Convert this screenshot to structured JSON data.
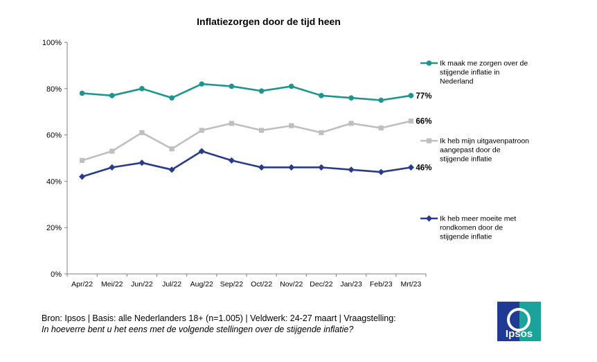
{
  "chart_data": {
    "type": "line",
    "title": "Inflatiezorgen door de tijd heen",
    "categories": [
      "Apr/22",
      "Mei/22",
      "Jun/22",
      "Jul/22",
      "Aug/22",
      "Sep/22",
      "Oct/22",
      "Nov/22",
      "Dec/22",
      "Jan/23",
      "Feb/23",
      "Mrt/23"
    ],
    "ylim": [
      0,
      100
    ],
    "yticks": [
      "0%",
      "20%",
      "40%",
      "60%",
      "80%",
      "100%"
    ],
    "ytick_values": [
      0,
      20,
      40,
      60,
      80,
      100
    ],
    "xlabel": "",
    "ylabel": "",
    "grid": false,
    "legend_position": "right",
    "series": [
      {
        "name": "Ik maak me zorgen over de stijgende inflatie in Nederland",
        "legend_lines": [
          "Ik maak me zorgen over de",
          "stijgende inflatie in",
          "Nederland"
        ],
        "values": [
          78,
          77,
          80,
          76,
          82,
          81,
          79,
          81,
          77,
          76,
          75,
          77
        ],
        "end_label": "77%",
        "color": "#1a958f",
        "marker": "circle"
      },
      {
        "name": "Ik heb mijn uitgavenpatroon aangepast door de stijgende inflatie",
        "legend_lines": [
          "Ik heb mijn uitgavenpatroon",
          "aangepast door de",
          "stijgende inflatie"
        ],
        "values": [
          49,
          53,
          61,
          54,
          62,
          65,
          62,
          64,
          61,
          65,
          63,
          66
        ],
        "end_label": "66%",
        "color": "#bfbfbf",
        "marker": "square"
      },
      {
        "name": "Ik heb meer moeite met rondkomen door de stijgende inflatie",
        "legend_lines": [
          "Ik heb meer moeite met",
          "rondkomen door de",
          "stijgende inflatie"
        ],
        "values": [
          42,
          46,
          48,
          45,
          53,
          49,
          46,
          46,
          46,
          45,
          44,
          46
        ],
        "end_label": "46%",
        "color": "#283b8c",
        "marker": "diamond"
      }
    ]
  },
  "footer": {
    "source": "Bron: Ipsos | Basis: alle Nederlanders 18+ (n=1.005) | Veldwerk: 24-27 maart | Vraagstelling:",
    "question": "In hoeverre bent u het eens met de volgende stellingen over de stijgende inflatie?"
  },
  "logo": {
    "text": "Ipsos",
    "color_left": "#1f3a93",
    "color_right": "#19a39a"
  }
}
